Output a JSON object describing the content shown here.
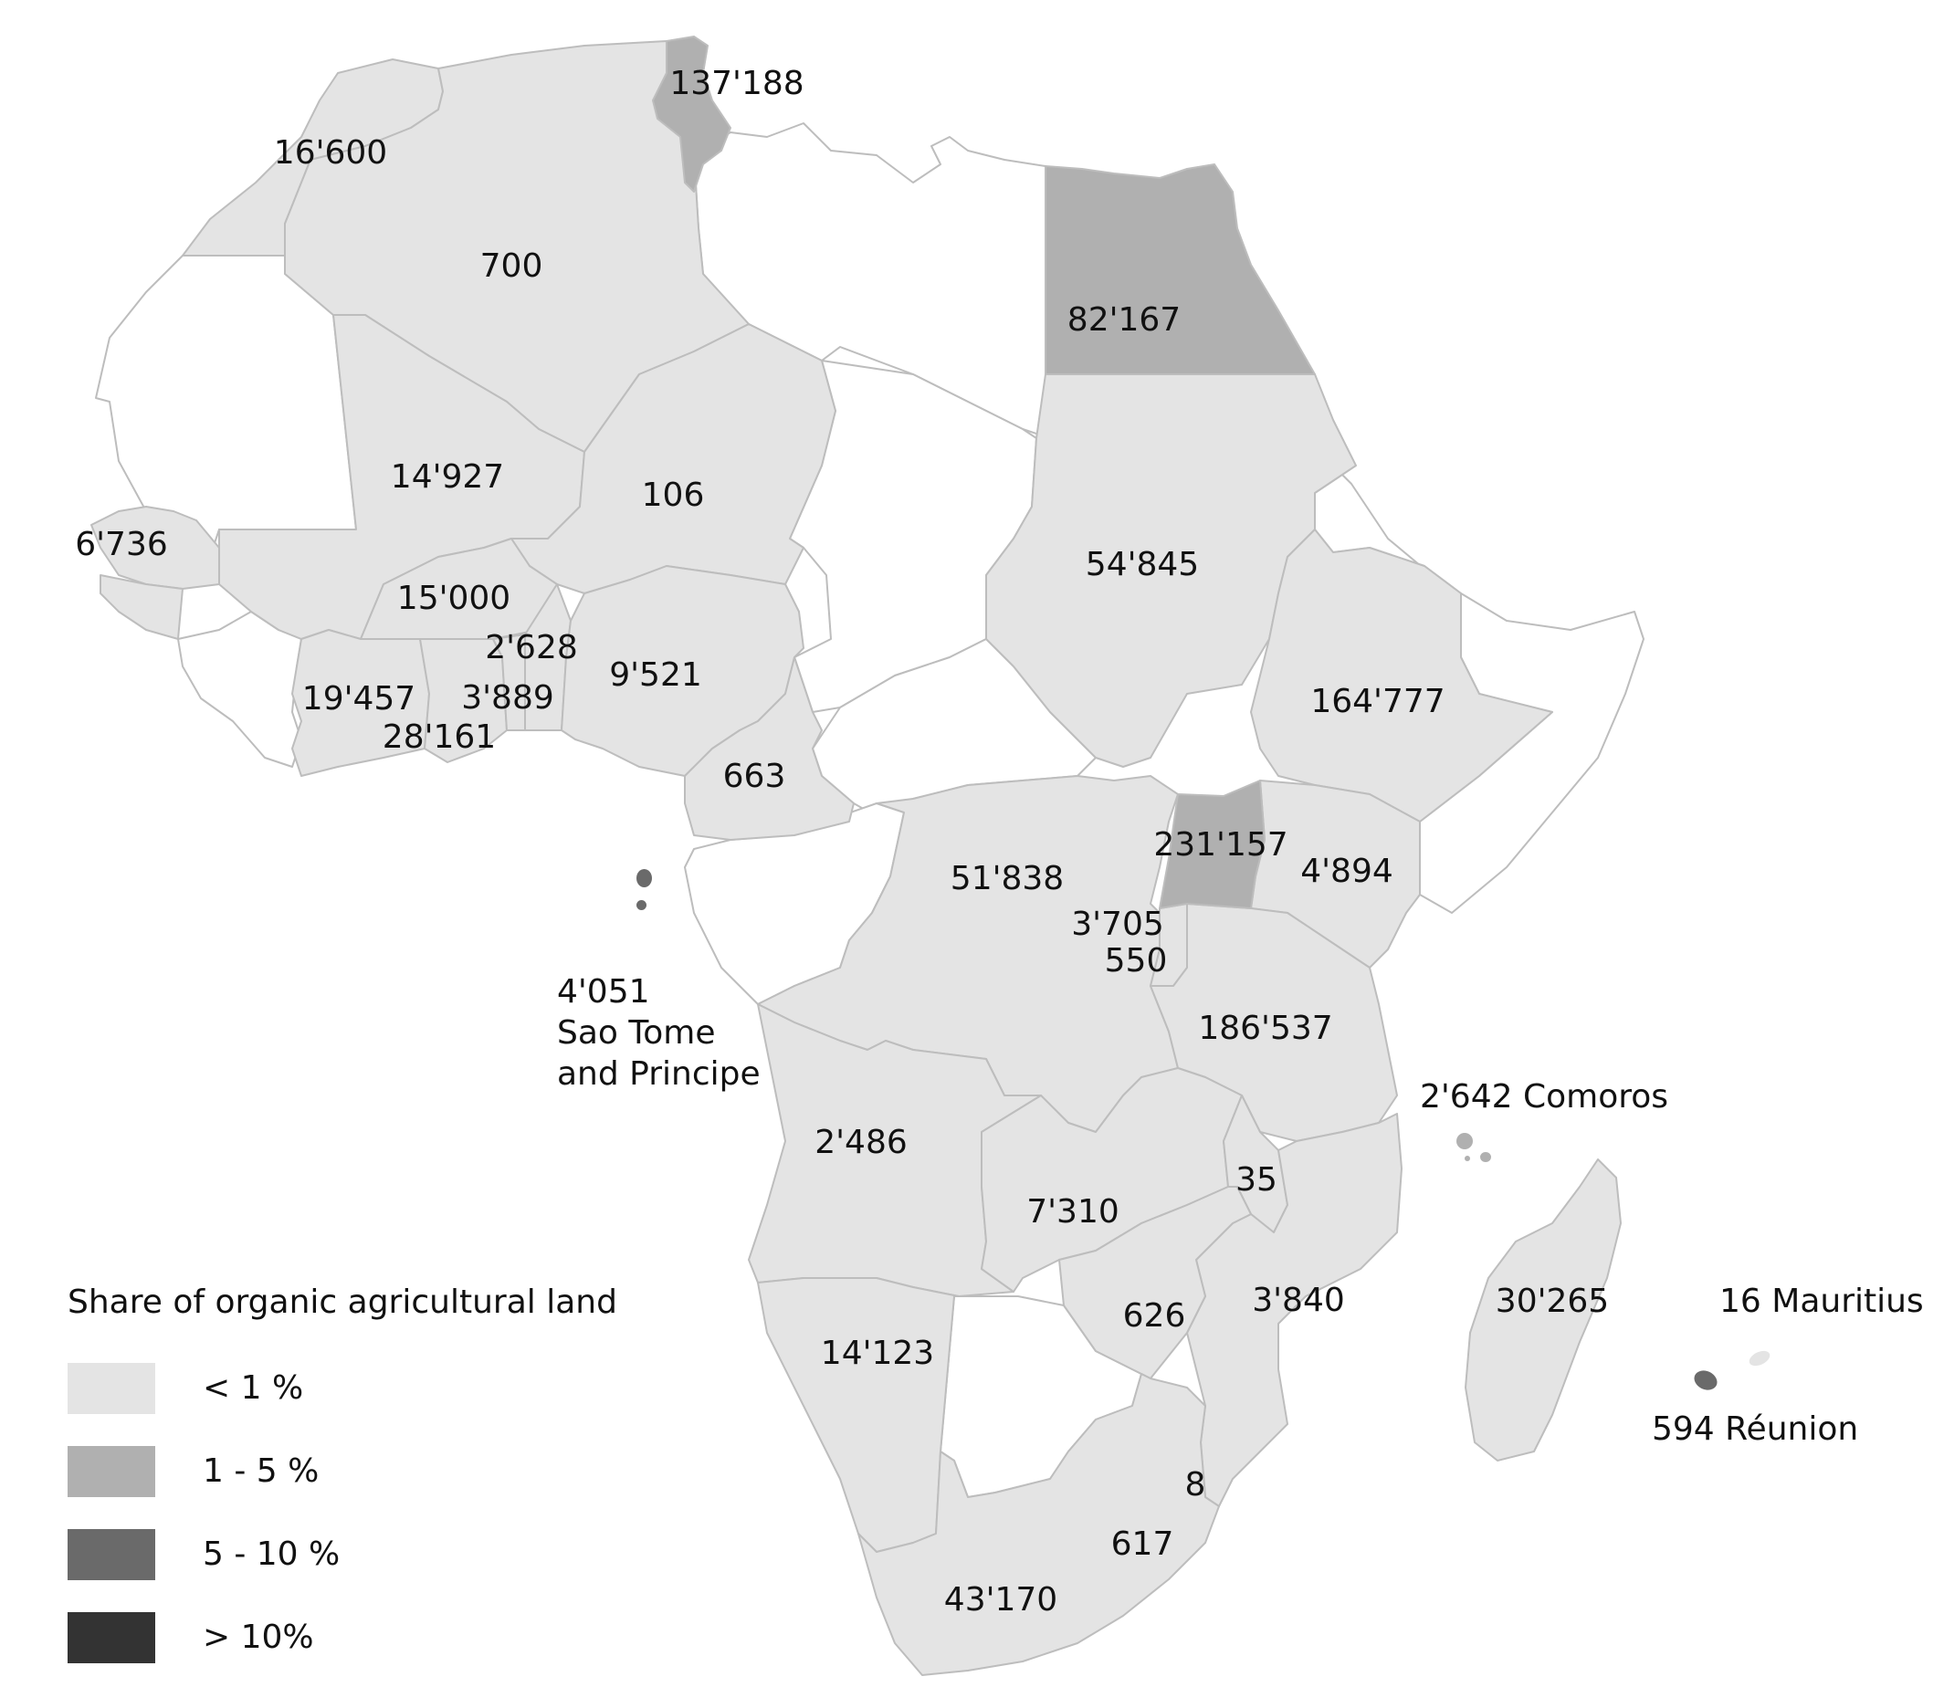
{
  "legend": {
    "title": "Share of organic agricultural land",
    "items": [
      {
        "label": "< 1 %",
        "color": "#e4e4e4"
      },
      {
        "label": "1 - 5 %",
        "color": "#b0b0b0"
      },
      {
        "label": "5 - 10 %",
        "color": "#6a6a6a"
      },
      {
        "label": "> 10%",
        "color": "#333333"
      }
    ]
  },
  "regions": {
    "morocco": "16'600",
    "algeria": "700",
    "tunisia": "137'188",
    "egypt": "82'167",
    "mali": "14'927",
    "niger": "106",
    "senegal": "6'736",
    "burkina_faso": "15'000",
    "togo": "2'628",
    "nigeria": "9'521",
    "cote_divoire": "19'457",
    "benin": "3'889",
    "ghana": "28'161",
    "cameroon": "663",
    "sudan": "54'845",
    "ethiopia": "164'777",
    "uganda": "231'157",
    "kenya": "4'894",
    "dr_congo": "51'838",
    "rwanda": "3'705",
    "burundi": "550",
    "tanzania": "186'537",
    "angola": "2'486",
    "zambia": "7'310",
    "malawi": "35",
    "mozambique": "3'840",
    "zimbabwe": "626",
    "namibia": "14'123",
    "swaziland": "8",
    "lesotho": "617",
    "south_africa": "43'170",
    "madagascar": "30'265"
  },
  "islands": {
    "sao_tome": {
      "value": "4'051",
      "name_line1": "Sao Tome",
      "name_line2": "and Principe"
    },
    "comoros": "2'642 Comoros",
    "mauritius": "16 Mauritius",
    "reunion": "594 Réunion"
  }
}
